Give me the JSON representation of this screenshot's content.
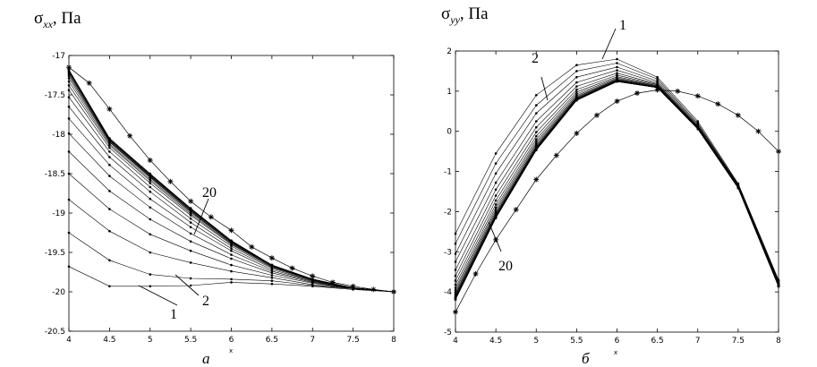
{
  "chart_data": [
    {
      "type": "line",
      "ylabel_main": "σ",
      "ylabel_sub": "xx",
      "ylabel_unit": ", Па",
      "xlabel": "x",
      "panel_label": "а",
      "xlim": [
        4,
        8
      ],
      "ylim": [
        -20.5,
        -17
      ],
      "x_ticks": [
        "4",
        "4.5",
        "5",
        "5.5",
        "6",
        "6.5",
        "7",
        "7.5",
        "8"
      ],
      "y_ticks": [
        "-17",
        "-17.5",
        "-18",
        "-18.5",
        "-19",
        "-19.5",
        "-20",
        "-20.5"
      ],
      "x": [
        4,
        4.5,
        5,
        5.5,
        6,
        6.5,
        7,
        7.5,
        8
      ],
      "series": [
        {
          "values": [
            -19.68,
            -19.93,
            -19.93,
            -19.92,
            -19.88,
            -19.9,
            -19.93,
            -19.97,
            -20.0
          ]
        },
        {
          "values": [
            -19.25,
            -19.6,
            -19.78,
            -19.83,
            -19.84,
            -19.86,
            -19.92,
            -19.96,
            -20.0
          ]
        },
        {
          "values": [
            -18.83,
            -19.23,
            -19.5,
            -19.63,
            -19.74,
            -19.82,
            -19.91,
            -19.96,
            -20.0
          ]
        },
        {
          "values": [
            -18.5,
            -18.95,
            -19.27,
            -19.48,
            -19.66,
            -19.79,
            -19.89,
            -19.96,
            -20.0
          ]
        },
        {
          "values": [
            -18.22,
            -18.72,
            -19.08,
            -19.36,
            -19.58,
            -19.76,
            -19.88,
            -19.96,
            -20.0
          ]
        },
        {
          "values": [
            -17.99,
            -18.53,
            -18.93,
            -19.26,
            -19.53,
            -19.74,
            -19.87,
            -19.96,
            -20.0
          ]
        },
        {
          "values": [
            -17.8,
            -18.39,
            -18.82,
            -19.18,
            -19.48,
            -19.72,
            -19.86,
            -19.96,
            -20.0
          ]
        },
        {
          "values": [
            -17.65,
            -18.29,
            -18.73,
            -19.12,
            -19.45,
            -19.7,
            -19.86,
            -19.96,
            -20.0
          ]
        },
        {
          "values": [
            -17.53,
            -18.22,
            -18.67,
            -19.07,
            -19.42,
            -19.69,
            -19.85,
            -19.95,
            -20.0
          ]
        },
        {
          "values": [
            -17.44,
            -18.17,
            -18.62,
            -19.03,
            -19.4,
            -19.68,
            -19.85,
            -19.95,
            -20.0
          ]
        },
        {
          "values": [
            -17.38,
            -18.14,
            -18.59,
            -19.01,
            -19.39,
            -19.67,
            -19.85,
            -19.95,
            -20.0
          ]
        },
        {
          "values": [
            -17.33,
            -18.12,
            -18.57,
            -18.99,
            -19.38,
            -19.67,
            -19.85,
            -19.95,
            -20.0
          ]
        },
        {
          "values": [
            -17.29,
            -18.1,
            -18.55,
            -18.98,
            -19.37,
            -19.67,
            -19.84,
            -19.95,
            -20.0
          ]
        },
        {
          "values": [
            -17.26,
            -18.09,
            -18.54,
            -18.97,
            -19.37,
            -19.66,
            -19.84,
            -19.95,
            -20.0
          ]
        },
        {
          "values": [
            -17.24,
            -18.08,
            -18.53,
            -18.96,
            -19.36,
            -19.66,
            -19.84,
            -19.95,
            -20.0
          ]
        },
        {
          "values": [
            -17.22,
            -18.07,
            -18.52,
            -18.95,
            -19.36,
            -19.66,
            -19.84,
            -19.95,
            -20.0
          ]
        },
        {
          "values": [
            -17.21,
            -18.07,
            -18.52,
            -18.95,
            -19.36,
            -19.66,
            -19.84,
            -19.95,
            -20.0
          ]
        },
        {
          "values": [
            -17.2,
            -18.06,
            -18.51,
            -18.94,
            -19.36,
            -19.66,
            -19.84,
            -19.95,
            -20.0
          ]
        },
        {
          "values": [
            -17.19,
            -18.06,
            -18.51,
            -18.94,
            -19.35,
            -19.66,
            -19.84,
            -19.95,
            -20.0
          ]
        },
        {
          "values": [
            -17.18,
            -18.05,
            -18.5,
            -18.94,
            -19.35,
            -19.66,
            -19.84,
            -19.95,
            -20.0
          ]
        }
      ],
      "reference": {
        "x": [
          4,
          4.25,
          4.5,
          4.75,
          5,
          5.25,
          5.5,
          5.75,
          6,
          6.25,
          6.5,
          6.75,
          7,
          7.25,
          7.5,
          7.75,
          8
        ],
        "values": [
          -17.15,
          -17.35,
          -17.68,
          -18.02,
          -18.33,
          -18.6,
          -18.85,
          -19.05,
          -19.22,
          -19.43,
          -19.57,
          -19.7,
          -19.8,
          -19.88,
          -19.93,
          -19.97,
          -20.0
        ]
      },
      "annotations": [
        "1",
        "2",
        "20"
      ]
    },
    {
      "type": "line",
      "ylabel_main": "σ",
      "ylabel_sub": "yy",
      "ylabel_unit": ", Па",
      "xlabel": "x",
      "panel_label": "б",
      "xlim": [
        4,
        8
      ],
      "ylim": [
        -5,
        2
      ],
      "x_ticks": [
        "4",
        "4.5",
        "5",
        "5.5",
        "6",
        "6.5",
        "7",
        "7.5",
        "8"
      ],
      "y_ticks": [
        "2",
        "1",
        "0",
        "-1",
        "-2",
        "-3",
        "-4",
        "-5"
      ],
      "x": [
        4,
        4.5,
        5,
        5.5,
        6,
        6.5,
        7,
        7.5,
        8
      ],
      "series": [
        {
          "values": [
            -2.55,
            -0.55,
            0.9,
            1.65,
            1.8,
            1.35,
            0.25,
            -1.3,
            -3.7
          ]
        },
        {
          "values": [
            -2.8,
            -0.8,
            0.65,
            1.5,
            1.7,
            1.3,
            0.2,
            -1.32,
            -3.72
          ]
        },
        {
          "values": [
            -3.05,
            -1.05,
            0.45,
            1.35,
            1.6,
            1.25,
            0.17,
            -1.34,
            -3.74
          ]
        },
        {
          "values": [
            -3.25,
            -1.28,
            0.25,
            1.22,
            1.52,
            1.21,
            0.14,
            -1.35,
            -3.76
          ]
        },
        {
          "values": [
            -3.45,
            -1.45,
            0.1,
            1.12,
            1.45,
            1.18,
            0.12,
            -1.36,
            -3.78
          ]
        },
        {
          "values": [
            -3.6,
            -1.6,
            -0.02,
            1.04,
            1.4,
            1.16,
            0.11,
            -1.37,
            -3.8
          ]
        },
        {
          "values": [
            -3.72,
            -1.72,
            -0.12,
            0.98,
            1.36,
            1.14,
            0.1,
            -1.38,
            -3.81
          ]
        },
        {
          "values": [
            -3.82,
            -1.82,
            -0.2,
            0.93,
            1.33,
            1.13,
            0.09,
            -1.39,
            -3.82
          ]
        },
        {
          "values": [
            -3.9,
            -1.9,
            -0.26,
            0.89,
            1.31,
            1.12,
            0.08,
            -1.39,
            -3.83
          ]
        },
        {
          "values": [
            -3.96,
            -1.96,
            -0.31,
            0.86,
            1.29,
            1.11,
            0.08,
            -1.4,
            -3.84
          ]
        },
        {
          "values": [
            -4.01,
            -2.01,
            -0.35,
            0.84,
            1.28,
            1.1,
            0.07,
            -1.4,
            -3.84
          ]
        },
        {
          "values": [
            -4.05,
            -2.05,
            -0.38,
            0.82,
            1.27,
            1.1,
            0.07,
            -1.4,
            -3.85
          ]
        },
        {
          "values": [
            -4.08,
            -2.08,
            -0.4,
            0.81,
            1.26,
            1.1,
            0.07,
            -1.41,
            -3.85
          ]
        },
        {
          "values": [
            -4.11,
            -2.1,
            -0.42,
            0.8,
            1.25,
            1.09,
            0.06,
            -1.41,
            -3.85
          ]
        },
        {
          "values": [
            -4.13,
            -2.12,
            -0.43,
            0.79,
            1.25,
            1.09,
            0.06,
            -1.41,
            -3.86
          ]
        },
        {
          "values": [
            -4.15,
            -2.13,
            -0.44,
            0.79,
            1.25,
            1.09,
            0.06,
            -1.41,
            -3.86
          ]
        },
        {
          "values": [
            -4.16,
            -2.14,
            -0.45,
            0.78,
            1.24,
            1.09,
            0.06,
            -1.41,
            -3.86
          ]
        },
        {
          "values": [
            -4.17,
            -2.15,
            -0.46,
            0.78,
            1.24,
            1.09,
            0.06,
            -1.41,
            -3.86
          ]
        },
        {
          "values": [
            -4.18,
            -2.15,
            -0.46,
            0.78,
            1.24,
            1.09,
            0.06,
            -1.41,
            -3.86
          ]
        },
        {
          "values": [
            -4.19,
            -2.16,
            -0.47,
            0.77,
            1.24,
            1.09,
            0.06,
            -1.41,
            -3.86
          ]
        }
      ],
      "reference": {
        "x": [
          4,
          4.25,
          4.5,
          4.75,
          5,
          5.25,
          5.5,
          5.75,
          6,
          6.25,
          6.5,
          6.75,
          7,
          7.25,
          7.5,
          7.75,
          8
        ],
        "values": [
          -4.5,
          -3.55,
          -2.7,
          -1.95,
          -1.2,
          -0.6,
          -0.05,
          0.4,
          0.75,
          0.95,
          1.03,
          1.0,
          0.88,
          0.68,
          0.4,
          0.0,
          -0.5
        ]
      },
      "annotations": [
        "1",
        "2",
        "20"
      ]
    }
  ]
}
